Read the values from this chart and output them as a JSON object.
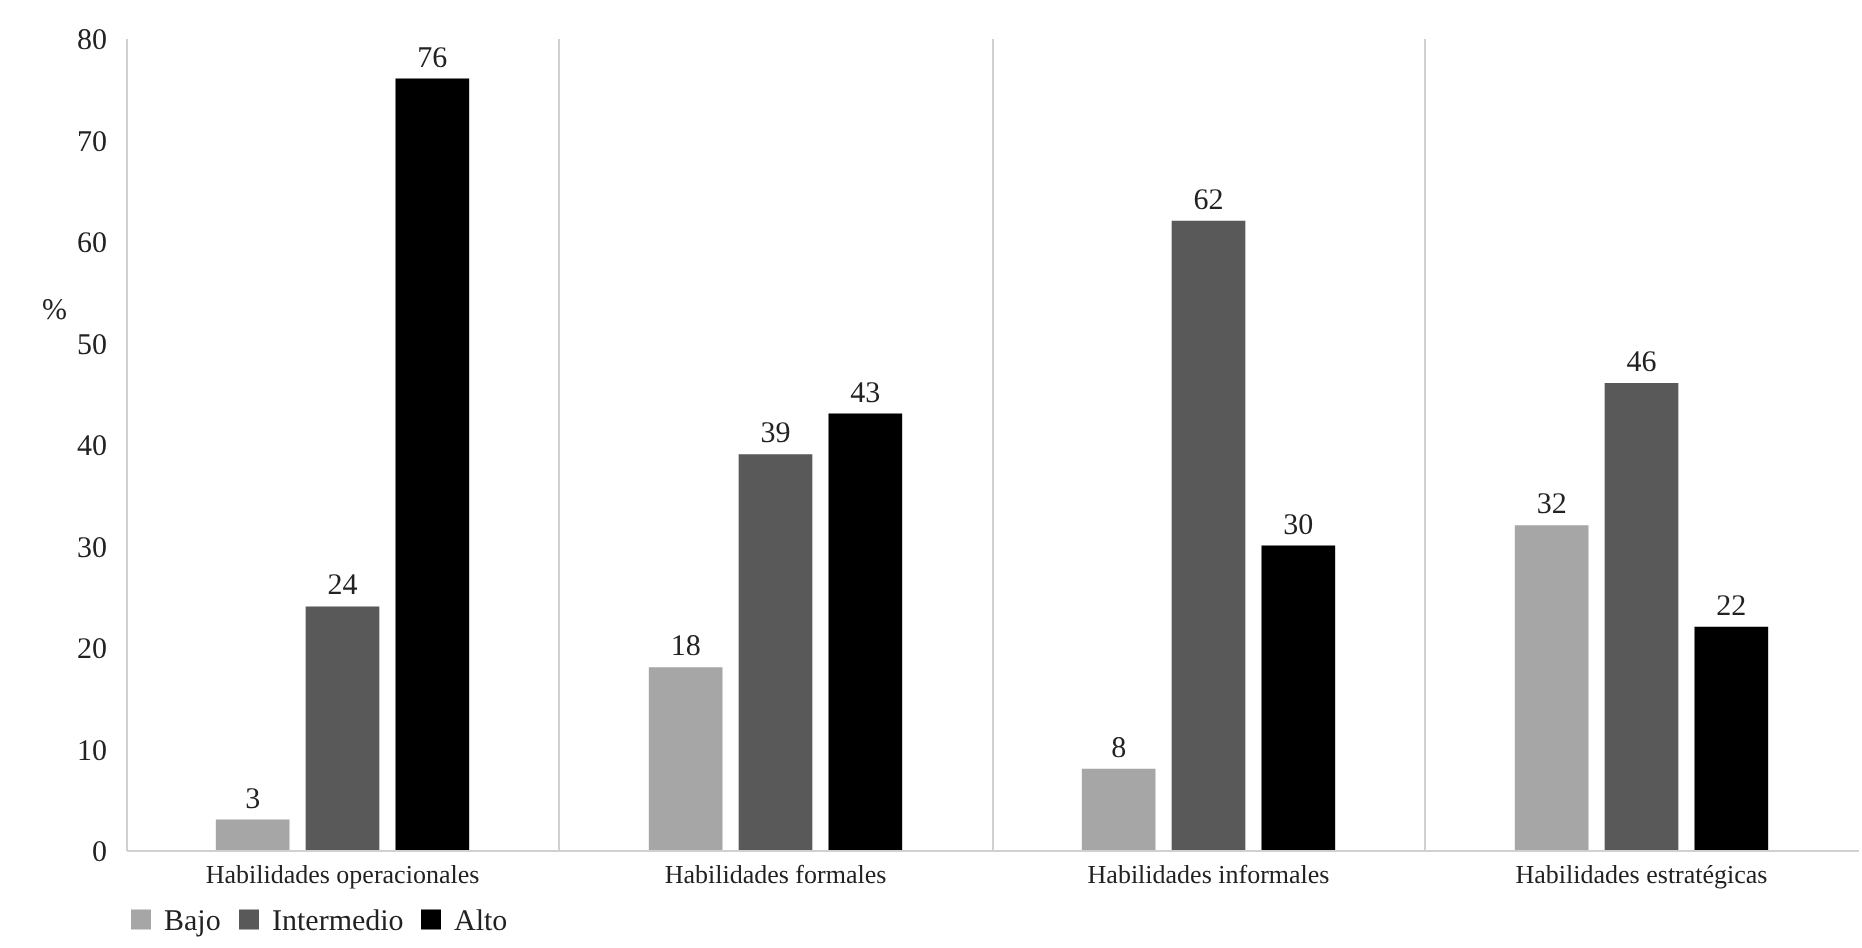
{
  "chart_data": {
    "type": "bar",
    "ylabel": "%",
    "categories": [
      "Habilidades operacionales",
      "Habilidades formales",
      "Habilidades informales",
      "Habilidades estratégicas"
    ],
    "series": [
      {
        "name": "Bajo",
        "color": "#a6a6a6",
        "values": [
          3,
          18,
          8,
          32
        ]
      },
      {
        "name": "Intermedio",
        "color": "#595959",
        "values": [
          24,
          39,
          62,
          46
        ]
      },
      {
        "name": "Alto",
        "color": "#000000",
        "values": [
          76,
          43,
          30,
          22
        ]
      }
    ],
    "ylim": [
      0,
      80
    ],
    "yticks": [
      0,
      10,
      20,
      30,
      40,
      50,
      60,
      70,
      80
    ],
    "grid": "x",
    "legend": "bottom",
    "data_labels": true
  }
}
